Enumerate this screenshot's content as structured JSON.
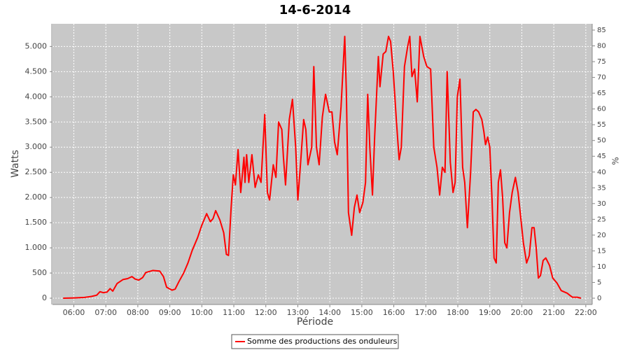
{
  "chart_data": {
    "type": "line",
    "title": "14-6-2014",
    "x_label": "Période",
    "y_label": "Watts",
    "y2_label": "%",
    "grid": true,
    "legend_position": "bottom",
    "xlim": [
      "05:20",
      "22:12"
    ],
    "xticks": [
      "06:00",
      "07:00",
      "08:00",
      "09:00",
      "10:00",
      "11:00",
      "12:00",
      "13:00",
      "14:00",
      "15:00",
      "16:00",
      "17:00",
      "18:00",
      "19:00",
      "20:00",
      "21:00",
      "22:00"
    ],
    "ylim": [
      -125,
      5450
    ],
    "yticks": [
      0,
      500,
      {
        "value": 1000,
        "label": "1.000"
      },
      {
        "value": 1500,
        "label": "1.500"
      },
      {
        "value": 2000,
        "label": "2.000"
      },
      {
        "value": 2500,
        "label": "2.500"
      },
      {
        "value": 3000,
        "label": "3.000"
      },
      {
        "value": 3500,
        "label": "3.500"
      },
      {
        "value": 4000,
        "label": "4.000"
      },
      {
        "value": 4500,
        "label": "4.500"
      },
      {
        "value": 5000,
        "label": "5.000"
      }
    ],
    "y2lim": [
      -2,
      87
    ],
    "y2ticks": [
      0,
      5,
      10,
      15,
      20,
      25,
      30,
      35,
      40,
      45,
      50,
      55,
      60,
      65,
      70,
      75,
      80,
      85
    ],
    "x": [
      "05:40",
      "06:00",
      "06:20",
      "06:33",
      "06:43",
      "06:49",
      "06:55",
      "07:02",
      "07:08",
      "07:13",
      "07:21",
      "07:32",
      "07:41",
      "07:49",
      "07:55",
      "08:02",
      "08:09",
      "08:15",
      "08:28",
      "08:41",
      "08:48",
      "08:54",
      "09:04",
      "09:10",
      "09:17",
      "09:26",
      "09:34",
      "09:42",
      "09:52",
      "10:00",
      "10:09",
      "10:16",
      "10:21",
      "10:26",
      "10:34",
      "10:41",
      "10:46",
      "10:50",
      "10:55",
      "10:59",
      "11:03",
      "11:08",
      "11:13",
      "11:19",
      "11:21",
      "11:24",
      "11:28",
      "11:34",
      "11:40",
      "11:46",
      "11:51",
      "11:58",
      "12:03",
      "12:07",
      "12:14",
      "12:19",
      "12:24",
      "12:30",
      "12:33",
      "12:37",
      "12:44",
      "12:50",
      "12:56",
      "13:00",
      "13:06",
      "13:11",
      "13:15",
      "13:19",
      "13:26",
      "13:30",
      "13:35",
      "13:40",
      "13:46",
      "13:52",
      "13:59",
      "14:04",
      "14:09",
      "14:14",
      "14:21",
      "14:28",
      "14:31",
      "14:35",
      "14:41",
      "14:46",
      "14:51",
      "14:56",
      "15:02",
      "15:07",
      "15:11",
      "15:15",
      "15:20",
      "15:24",
      "15:31",
      "15:34",
      "15:40",
      "15:45",
      "15:50",
      "15:54",
      "15:59",
      "16:05",
      "16:10",
      "16:14",
      "16:20",
      "16:26",
      "16:30",
      "16:34",
      "16:39",
      "16:44",
      "16:49",
      "16:56",
      "17:02",
      "17:09",
      "17:15",
      "17:21",
      "17:26",
      "17:31",
      "17:36",
      "17:40",
      "17:46",
      "17:51",
      "17:55",
      "17:59",
      "18:04",
      "18:09",
      "18:13",
      "18:18",
      "18:24",
      "18:29",
      "18:34",
      "18:39",
      "18:45",
      "18:49",
      "18:52",
      "18:56",
      "19:00",
      "19:04",
      "19:08",
      "19:12",
      "19:16",
      "19:20",
      "19:24",
      "19:28",
      "19:32",
      "19:37",
      "19:42",
      "19:48",
      "19:53",
      "19:58",
      "20:03",
      "20:09",
      "20:14",
      "20:19",
      "20:23",
      "20:27",
      "20:31",
      "20:35",
      "20:40",
      "20:45",
      "20:52",
      "20:58",
      "21:06",
      "21:14",
      "21:25",
      "21:31",
      "21:35",
      "21:44",
      "21:51"
    ],
    "series": [
      {
        "name": "Somme des productions des onduleurs",
        "color": "#ff0000",
        "values": [
          0,
          5,
          15,
          35,
          60,
          130,
          110,
          120,
          190,
          140,
          290,
          370,
          390,
          430,
          380,
          360,
          410,
          510,
          550,
          540,
          430,
          220,
          160,
          180,
          330,
          500,
          700,
          950,
          1200,
          1450,
          1680,
          1520,
          1580,
          1740,
          1550,
          1300,
          870,
          850,
          1800,
          2450,
          2250,
          2950,
          2100,
          2800,
          2300,
          2850,
          2300,
          2850,
          2200,
          2450,
          2300,
          3650,
          2100,
          1950,
          2650,
          2400,
          3500,
          3350,
          2800,
          2250,
          3550,
          3950,
          3000,
          1950,
          2800,
          3550,
          3350,
          2650,
          3000,
          4600,
          3000,
          2650,
          3600,
          4050,
          3700,
          3700,
          3100,
          2850,
          3800,
          5200,
          4100,
          1700,
          1250,
          1800,
          2050,
          1700,
          1900,
          2300,
          4050,
          3000,
          2050,
          3200,
          4800,
          4200,
          4850,
          4900,
          5200,
          5100,
          4500,
          3500,
          2750,
          3000,
          4600,
          5000,
          5200,
          4400,
          4550,
          3900,
          5200,
          4800,
          4600,
          4550,
          3000,
          2600,
          2050,
          2600,
          2500,
          4500,
          2700,
          2100,
          2300,
          4000,
          4350,
          2600,
          2300,
          1400,
          2500,
          3700,
          3750,
          3700,
          3550,
          3300,
          3050,
          3200,
          3000,
          2000,
          800,
          700,
          2300,
          2550,
          2000,
          1100,
          1000,
          1700,
          2100,
          2400,
          2100,
          1600,
          1100,
          700,
          850,
          1400,
          1400,
          1000,
          400,
          450,
          750,
          800,
          650,
          400,
          300,
          150,
          100,
          50,
          20,
          20,
          0
        ]
      }
    ]
  }
}
